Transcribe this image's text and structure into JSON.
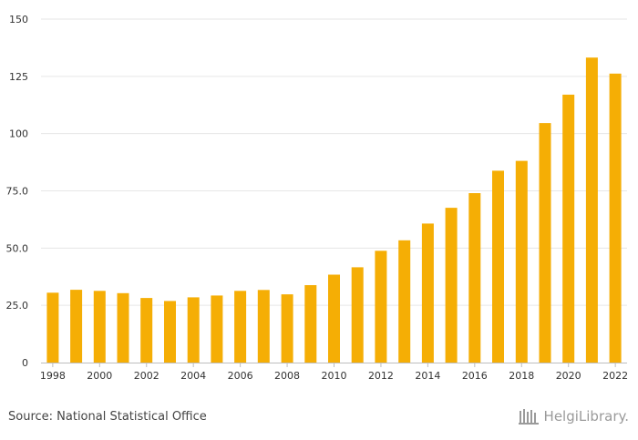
{
  "chart_data": {
    "type": "bar",
    "title": "",
    "xlabel": "",
    "ylabel": "",
    "ylim": [
      0,
      150
    ],
    "yticks": [
      {
        "value": 0,
        "label": "0"
      },
      {
        "value": 25,
        "label": "25.0"
      },
      {
        "value": 50,
        "label": "50.0"
      },
      {
        "value": 75,
        "label": "75.0"
      },
      {
        "value": 100,
        "label": "100"
      },
      {
        "value": 125,
        "label": "125"
      },
      {
        "value": 150,
        "label": "150"
      }
    ],
    "categories": [
      "1998",
      "1999",
      "2000",
      "2001",
      "2002",
      "2003",
      "2004",
      "2005",
      "2006",
      "2007",
      "2008",
      "2009",
      "2010",
      "2011",
      "2012",
      "2013",
      "2014",
      "2015",
      "2016",
      "2017",
      "2018",
      "2019",
      "2020",
      "2021",
      "2022"
    ],
    "xtick_labels": [
      "1998",
      "2000",
      "2002",
      "2004",
      "2006",
      "2008",
      "2010",
      "2012",
      "2014",
      "2016",
      "2018",
      "2020",
      "2022"
    ],
    "values": [
      30.5,
      31.8,
      31.3,
      30.3,
      28.2,
      26.9,
      28.5,
      29.3,
      31.3,
      31.7,
      29.8,
      33.8,
      38.4,
      41.6,
      48.8,
      53.4,
      60.7,
      67.6,
      74.0,
      83.8,
      88.1,
      104.6,
      117.0,
      133.2,
      126.2
    ],
    "bar_color": "#f5ae05",
    "grid": true
  },
  "footer": {
    "source": "Source: National Statistical Office"
  },
  "logo": {
    "text": "HelgiLibrary.",
    "color": "#9a9a9a"
  }
}
